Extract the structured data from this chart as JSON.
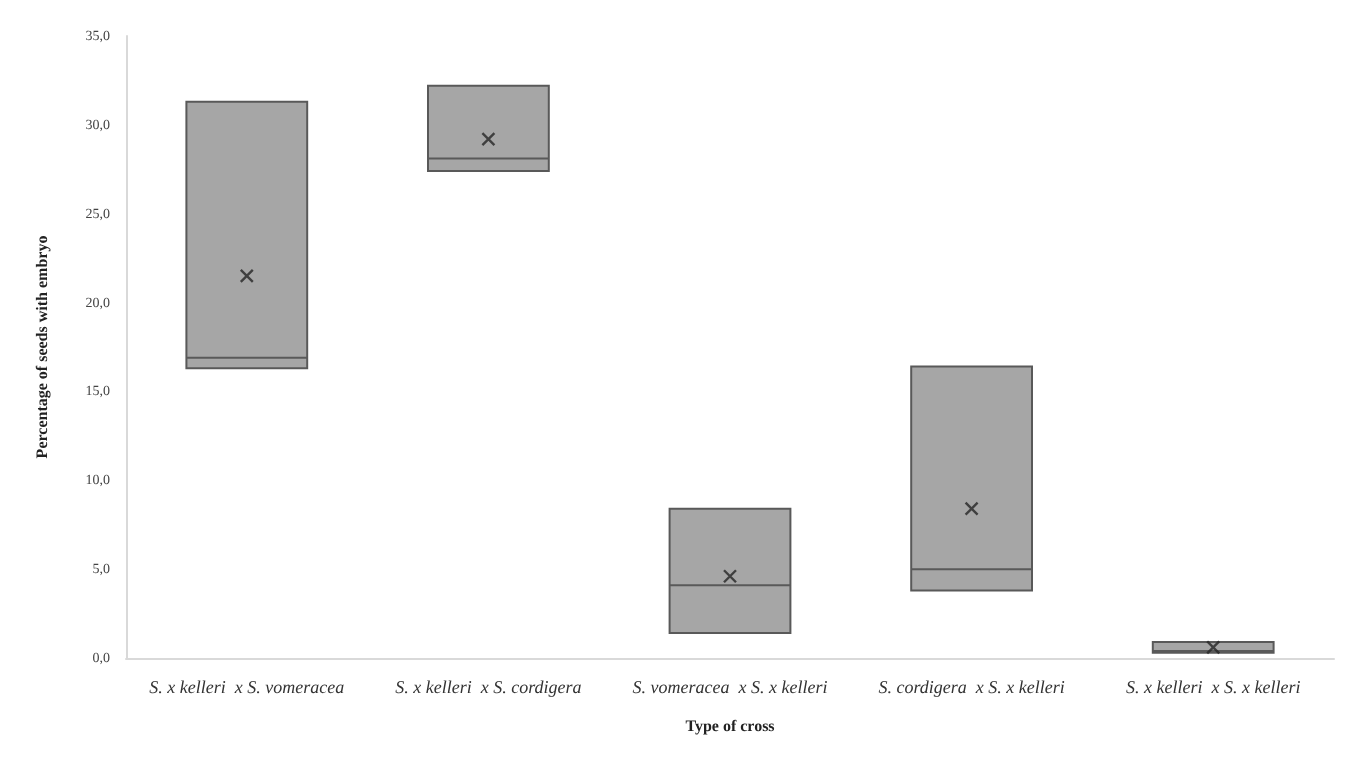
{
  "chart_data": {
    "type": "box",
    "xlabel": "Type of cross",
    "ylabel": "Percentage of seeds with embryo",
    "categories": [
      "S. x kelleri  x S. vomeracea",
      "S. x kelleri  x S. cordigera",
      "S. vomeracea  x S. x kelleri",
      "S. cordigera  x S. x kelleri",
      "S. x kelleri  x S. x kelleri"
    ],
    "series": [
      {
        "color": "#a6a6a6",
        "boxes": [
          {
            "low": 16.3,
            "q1": 16.3,
            "median": 16.9,
            "q3": 31.3,
            "high": 31.3,
            "mean": 21.5
          },
          {
            "low": 27.4,
            "q1": 27.4,
            "median": 28.1,
            "q3": 32.2,
            "high": 32.2,
            "mean": 29.2
          },
          {
            "low": 1.4,
            "q1": 1.4,
            "median": 4.1,
            "q3": 8.4,
            "high": 8.4,
            "mean": 4.6
          },
          {
            "low": 3.8,
            "q1": 3.8,
            "median": 5.0,
            "q3": 16.4,
            "high": 16.4,
            "mean": 8.4
          },
          {
            "low": 0.3,
            "q1": 0.3,
            "median": 0.4,
            "q3": 0.9,
            "high": 0.9,
            "mean": 0.6
          }
        ]
      }
    ],
    "ylim": [
      0,
      35
    ],
    "yticks": [
      {
        "value": 0,
        "label": "0,0"
      },
      {
        "value": 5,
        "label": "5,0"
      },
      {
        "value": 10,
        "label": "10,0"
      },
      {
        "value": 15,
        "label": "15,0"
      },
      {
        "value": 20,
        "label": "20,0"
      },
      {
        "value": 25,
        "label": "25,0"
      },
      {
        "value": 30,
        "label": "30,0"
      },
      {
        "value": 35,
        "label": "35,0"
      }
    ],
    "grid": false
  }
}
